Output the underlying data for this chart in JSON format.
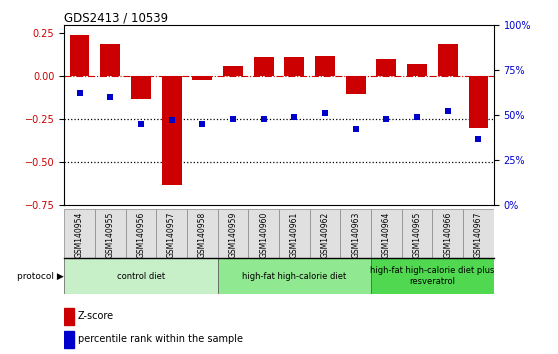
{
  "title": "GDS2413 / 10539",
  "samples": [
    "GSM140954",
    "GSM140955",
    "GSM140956",
    "GSM140957",
    "GSM140958",
    "GSM140959",
    "GSM140960",
    "GSM140961",
    "GSM140962",
    "GSM140963",
    "GSM140964",
    "GSM140965",
    "GSM140966",
    "GSM140967"
  ],
  "zscore": [
    0.24,
    0.19,
    -0.13,
    -0.63,
    -0.02,
    0.06,
    0.11,
    0.11,
    0.12,
    -0.1,
    0.1,
    0.07,
    0.19,
    -0.3
  ],
  "percentile": [
    62,
    60,
    45,
    47,
    45,
    48,
    48,
    49,
    51,
    42,
    48,
    49,
    52,
    37
  ],
  "bar_color": "#cc0000",
  "dot_color": "#0000cc",
  "groups": [
    {
      "label": "control diet",
      "start": 0,
      "end": 5,
      "color": "#c8f0c8"
    },
    {
      "label": "high-fat high-calorie diet",
      "start": 5,
      "end": 10,
      "color": "#90e890"
    },
    {
      "label": "high-fat high-calorie diet plus\nresveratrol",
      "start": 10,
      "end": 14,
      "color": "#50d850"
    }
  ],
  "ylim_left": [
    -0.75,
    0.3
  ],
  "ylim_right": [
    0,
    100
  ],
  "yticks_left": [
    -0.75,
    -0.5,
    -0.25,
    0,
    0.25
  ],
  "yticks_right": [
    0,
    25,
    50,
    75,
    100
  ],
  "hline_y": 0,
  "dotted_lines": [
    -0.25,
    -0.5
  ],
  "background_color": "#ffffff"
}
